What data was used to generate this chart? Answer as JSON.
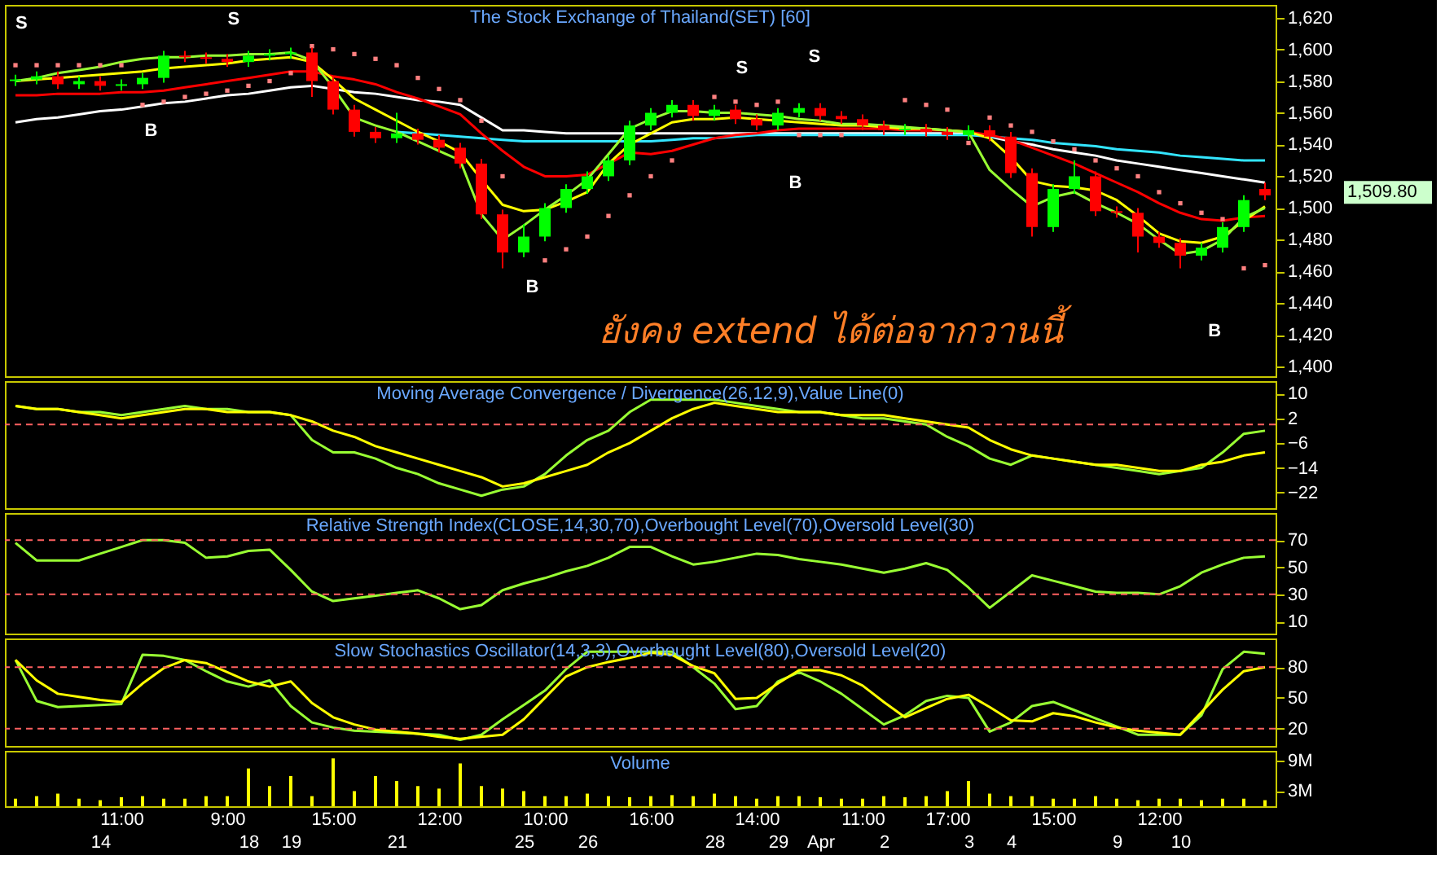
{
  "chart_data": [
    {
      "type": "candlestick",
      "title": "The Stock Exchange of Thailand(SET) [60]",
      "categories": [
        null,
        null,
        null,
        null,
        null,
        null,
        null,
        null,
        null,
        null,
        null,
        null,
        null,
        null,
        null,
        null,
        null,
        null,
        null,
        null,
        null,
        null,
        null,
        null,
        null,
        null,
        null,
        null,
        null,
        null,
        null,
        null,
        null,
        null,
        null,
        null,
        null,
        null,
        null,
        null,
        null,
        null,
        null,
        null,
        null,
        null,
        null,
        null,
        null,
        null,
        null,
        null,
        null,
        null,
        null,
        null,
        null,
        null,
        null,
        null
      ],
      "ohlc": [
        [
          1580,
          1584,
          1577,
          1581
        ],
        [
          1581,
          1586,
          1578,
          1583
        ],
        [
          1583,
          1586,
          1575,
          1578
        ],
        [
          1578,
          1583,
          1575,
          1580
        ],
        [
          1580,
          1583,
          1574,
          1577
        ],
        [
          1577,
          1581,
          1574,
          1578
        ],
        [
          1578,
          1585,
          1575,
          1582
        ],
        [
          1582,
          1599,
          1579,
          1596
        ],
        [
          1596,
          1599,
          1592,
          1595
        ],
        [
          1595,
          1598,
          1591,
          1594
        ],
        [
          1594,
          1597,
          1589,
          1592
        ],
        [
          1592,
          1599,
          1589,
          1596
        ],
        [
          1596,
          1600,
          1593,
          1597
        ],
        [
          1597,
          1601,
          1594,
          1598
        ],
        [
          1598,
          1601,
          1570,
          1580
        ],
        [
          1580,
          1583,
          1559,
          1562
        ],
        [
          1562,
          1565,
          1545,
          1548
        ],
        [
          1548,
          1551,
          1541,
          1544
        ],
        [
          1544,
          1560,
          1541,
          1547
        ],
        [
          1547,
          1550,
          1540,
          1543
        ],
        [
          1543,
          1546,
          1535,
          1538
        ],
        [
          1538,
          1541,
          1525,
          1528
        ],
        [
          1528,
          1531,
          1493,
          1496
        ],
        [
          1496,
          1499,
          1462,
          1472
        ],
        [
          1472,
          1490,
          1469,
          1482
        ],
        [
          1482,
          1503,
          1479,
          1500
        ],
        [
          1500,
          1515,
          1497,
          1512
        ],
        [
          1512,
          1523,
          1509,
          1520
        ],
        [
          1520,
          1533,
          1517,
          1530
        ],
        [
          1530,
          1555,
          1527,
          1552
        ],
        [
          1552,
          1563,
          1549,
          1560
        ],
        [
          1560,
          1568,
          1557,
          1565
        ],
        [
          1565,
          1568,
          1555,
          1558
        ],
        [
          1558,
          1565,
          1555,
          1562
        ],
        [
          1562,
          1565,
          1553,
          1556
        ],
        [
          1556,
          1559,
          1549,
          1552
        ],
        [
          1552,
          1563,
          1549,
          1560
        ],
        [
          1560,
          1566,
          1557,
          1563
        ],
        [
          1563,
          1566,
          1555,
          1558
        ],
        [
          1558,
          1561,
          1553,
          1556
        ],
        [
          1556,
          1559,
          1549,
          1552
        ],
        [
          1552,
          1555,
          1546,
          1549
        ],
        [
          1549,
          1553,
          1546,
          1550
        ],
        [
          1550,
          1553,
          1545,
          1548
        ],
        [
          1548,
          1551,
          1543,
          1546
        ],
        [
          1546,
          1552,
          1543,
          1549
        ],
        [
          1549,
          1552,
          1542,
          1545
        ],
        [
          1545,
          1548,
          1519,
          1522
        ],
        [
          1522,
          1525,
          1482,
          1488
        ],
        [
          1488,
          1515,
          1485,
          1512
        ],
        [
          1512,
          1530,
          1509,
          1520
        ],
        [
          1520,
          1523,
          1495,
          1498
        ],
        [
          1498,
          1501,
          1494,
          1497
        ],
        [
          1497,
          1500,
          1472,
          1482
        ],
        [
          1482,
          1485,
          1475,
          1478
        ],
        [
          1478,
          1481,
          1462,
          1470
        ],
        [
          1470,
          1478,
          1467,
          1475
        ],
        [
          1475,
          1491,
          1472,
          1488
        ],
        [
          1488,
          1508,
          1485,
          1505
        ],
        [
          1512,
          1516,
          1505,
          1508
        ]
      ],
      "colors": [
        "#00ff00",
        "#00ff00",
        "#ff0000",
        "#00ff00",
        "#ff0000",
        "#00ff00",
        "#00ff00",
        "#00ff00",
        "#ff0000",
        "#ff0000",
        "#ff0000",
        "#00ff00",
        "#00ff00",
        "#00ff00",
        "#ff0000",
        "#ff0000",
        "#ff0000",
        "#ff0000",
        "#00ff00",
        "#ff0000",
        "#ff0000",
        "#ff0000",
        "#ff0000",
        "#ff0000",
        "#00ff00",
        "#00ff00",
        "#00ff00",
        "#00ff00",
        "#00ff00",
        "#00ff00",
        "#00ff00",
        "#00ff00",
        "#ff0000",
        "#00ff00",
        "#ff0000",
        "#ff0000",
        "#00ff00",
        "#00ff00",
        "#ff0000",
        "#ff0000",
        "#ff0000",
        "#ff0000",
        "#00ff00",
        "#ff0000",
        "#ff0000",
        "#00ff00",
        "#ff0000",
        "#ff0000",
        "#ff0000",
        "#00ff00",
        "#00ff00",
        "#ff0000",
        "#ff0000",
        "#ff0000",
        "#ff0000",
        "#ff0000",
        "#00ff00",
        "#00ff00",
        "#00ff00",
        "#ff0000"
      ],
      "series": [
        {
          "type": "line",
          "color": "#ffffff",
          "values": [
            1554,
            1556,
            1557,
            1559,
            1561,
            1562,
            1564,
            1566,
            1567,
            1569,
            1571,
            1572,
            1574,
            1576,
            1577,
            1575,
            1573,
            1572,
            1570,
            1568,
            1567,
            1565,
            1557,
            1549,
            1549,
            1548,
            1547,
            1547,
            1547,
            1547,
            1547,
            1547,
            1547,
            1547,
            1547,
            1547,
            1547,
            1547,
            1547,
            1547,
            1547,
            1547,
            1547,
            1547,
            1547,
            1547,
            1545,
            1542,
            1540,
            1537,
            1535,
            1533,
            1530,
            1528,
            1526,
            1524,
            1522,
            1520,
            1518,
            1516
          ]
        },
        {
          "type": "line",
          "color": "#33e5ff",
          "values": [
            null,
            null,
            null,
            null,
            null,
            null,
            null,
            null,
            null,
            null,
            null,
            null,
            null,
            null,
            null,
            null,
            null,
            null,
            1548,
            1547,
            1546,
            1545,
            1544,
            1543,
            1542,
            1542,
            1542,
            1542,
            1542,
            1542,
            1542,
            1543,
            1544,
            1544,
            1545,
            1546,
            1546,
            1546,
            1546,
            1546,
            1546,
            1546,
            1546,
            1546,
            1546,
            1546,
            1545,
            1544,
            1543,
            1541,
            1540,
            1539,
            1537,
            1536,
            1535,
            1533,
            1532,
            1531,
            1530,
            1530
          ]
        },
        {
          "type": "line",
          "color": "#ff0000",
          "values": [
            1571,
            1571,
            1572,
            1572,
            1572,
            1573,
            1573,
            1574,
            1576,
            1578,
            1580,
            1582,
            1584,
            1586,
            1586,
            1583,
            1581,
            1578,
            1573,
            1569,
            1564,
            1559,
            1547,
            1536,
            1526,
            1520,
            1520,
            1521,
            1528,
            1535,
            1534,
            1536,
            1540,
            1544,
            1546,
            1547,
            1549,
            1550,
            1550,
            1550,
            1550,
            1550,
            1549,
            1549,
            1549,
            1548,
            1546,
            1543,
            1538,
            1533,
            1528,
            1522,
            1516,
            1510,
            1503,
            1497,
            1493,
            1492,
            1494,
            1495
          ]
        },
        {
          "type": "line",
          "color": "#ffff00",
          "values": [
            1580,
            1581,
            1582,
            1583,
            1584,
            1585,
            1586,
            1588,
            1589,
            1590,
            1591,
            1593,
            1594,
            1595,
            1592,
            1581,
            1569,
            1562,
            1555,
            1548,
            1542,
            1535,
            1518,
            1502,
            1498,
            1499,
            1504,
            1510,
            1528,
            1540,
            1547,
            1554,
            1556,
            1556,
            1557,
            1556,
            1555,
            1554,
            1553,
            1552,
            1552,
            1551,
            1550,
            1550,
            1549,
            1548,
            1544,
            1532,
            1517,
            1514,
            1513,
            1511,
            1505,
            1495,
            1484,
            1479,
            1478,
            1482,
            1492,
            1501
          ]
        },
        {
          "type": "line",
          "color": "#99ff33",
          "values": [
            1580,
            1582,
            1585,
            1587,
            1589,
            1592,
            1594,
            1595,
            1595,
            1596,
            1596,
            1597,
            1597,
            1598,
            1593,
            1576,
            1557,
            1552,
            1548,
            1542,
            1536,
            1530,
            1496,
            1480,
            1489,
            1499,
            1508,
            1518,
            1534,
            1550,
            1556,
            1561,
            1561,
            1560,
            1560,
            1559,
            1558,
            1556,
            1555,
            1553,
            1553,
            1552,
            1551,
            1550,
            1549,
            1548,
            1524,
            1512,
            1501,
            1507,
            1510,
            1503,
            1497,
            1490,
            1480,
            1471,
            1473,
            1480,
            1494,
            1500
          ]
        },
        {
          "type": "scatter",
          "marker": "square",
          "color": "#ff8080",
          "values": [
            1590,
            1590,
            1590,
            1590,
            1590,
            1590,
            1565,
            1567,
            1570,
            1572,
            1574,
            1577,
            1580,
            1585,
            1602,
            1600,
            1597,
            1594,
            1590,
            1582,
            1575,
            1568,
            1555,
            1520,
            null,
            1467,
            1474,
            1482,
            1495,
            1508,
            1520,
            1530,
            null,
            1570,
            1567,
            1565,
            1567,
            1546,
            1546,
            1546,
            null,
            null,
            1568,
            1565,
            1562,
            1541,
            1557,
            1552,
            1548,
            1542,
            1537,
            1530,
            1525,
            1520,
            1510,
            1503,
            1497,
            1493,
            1462,
            1464
          ]
        }
      ],
      "ylim": [
        1394,
        1628
      ],
      "yticks": [
        {
          "value": 1400,
          "label": "1,400"
        },
        {
          "value": 1420,
          "label": "1,420"
        },
        {
          "value": 1440,
          "label": "1,440"
        },
        {
          "value": 1460,
          "label": "1,460"
        },
        {
          "value": 1480,
          "label": "1,480"
        },
        {
          "value": 1500,
          "label": "1,500"
        },
        {
          "value": 1520,
          "label": "1,520"
        },
        {
          "value": 1540,
          "label": "1,540"
        },
        {
          "value": 1560,
          "label": "1,560"
        },
        {
          "value": 1580,
          "label": "1,580"
        },
        {
          "value": 1600,
          "label": "1,600"
        },
        {
          "value": 1620,
          "label": "1,620"
        }
      ],
      "annotations": [
        "S",
        "S",
        "S",
        "S",
        "B",
        "B",
        "B",
        "B",
        "ยังคง extend ได้ต่อจากวานนี้",
        "1,509.80"
      ]
    },
    {
      "type": "line",
      "title": "Moving Average Convergence / Divergence(26,12,9),Value Line(0)",
      "categories": [
        null,
        null,
        null,
        null,
        null,
        null,
        null,
        null,
        null,
        null,
        null,
        null,
        null,
        null,
        null,
        null,
        null,
        null,
        null,
        null,
        null,
        null,
        null,
        null,
        null,
        null,
        null,
        null,
        null,
        null,
        null,
        null,
        null,
        null,
        null,
        null,
        null,
        null,
        null,
        null,
        null,
        null,
        null,
        null,
        null,
        null,
        null,
        null,
        null,
        null,
        null,
        null,
        null,
        null,
        null,
        null,
        null,
        null,
        null,
        null
      ],
      "series": [
        {
          "color": "#99ff33",
          "values": [
            6,
            5,
            5,
            4,
            4,
            3,
            4,
            5,
            6,
            5,
            5,
            4,
            4,
            3,
            -5,
            -9,
            -9,
            -11,
            -14,
            -16,
            -19,
            -21,
            -23,
            -21,
            -20,
            -16,
            -10,
            -5,
            -2,
            4,
            8,
            8,
            8,
            8,
            7,
            6,
            5,
            4,
            4,
            3,
            2,
            2,
            1,
            0,
            -4,
            -7,
            -11,
            -13,
            -10,
            -11,
            -12,
            -13,
            -14,
            -15,
            -16,
            -15,
            -14,
            -9,
            -3,
            -2
          ]
        },
        {
          "color": "#ffff00",
          "values": [
            6,
            5,
            5,
            4,
            3,
            2,
            3,
            4,
            5,
            5,
            4,
            4,
            4,
            3,
            1,
            -2,
            -4,
            -7,
            -9,
            -11,
            -13,
            -15,
            -17,
            -20,
            -19,
            -17,
            -15,
            -13,
            -9,
            -6,
            -2,
            2,
            5,
            7,
            6,
            5,
            4,
            4,
            4,
            3,
            3,
            3,
            2,
            1,
            0,
            -1,
            -5,
            -8,
            -10,
            -11,
            -12,
            -13,
            -13,
            -14,
            -15,
            -15,
            -13,
            -12,
            -10,
            -9
          ]
        }
      ],
      "ylim": [
        -27,
        14
      ],
      "yticks": [
        10,
        2,
        -6,
        -14,
        -22
      ],
      "ref_lines": [
        {
          "axis": "y",
          "value": 0,
          "color": "#ff6060",
          "line_style": "dashed"
        }
      ]
    },
    {
      "type": "line",
      "title": "Relative Strength Index(CLOSE,14,30,70),Overbought Level(70),Oversold Level(30)",
      "categories": [
        null,
        null,
        null,
        null,
        null,
        null,
        null,
        null,
        null,
        null,
        null,
        null,
        null,
        null,
        null,
        null,
        null,
        null,
        null,
        null,
        null,
        null,
        null,
        null,
        null,
        null,
        null,
        null,
        null,
        null,
        null,
        null,
        null,
        null,
        null,
        null,
        null,
        null,
        null,
        null,
        null,
        null,
        null,
        null,
        null,
        null,
        null,
        null,
        null,
        null,
        null,
        null,
        null,
        null,
        null,
        null,
        null,
        null,
        null,
        null
      ],
      "series": [
        {
          "color": "#99ff33",
          "values": [
            68,
            55,
            55,
            55,
            60,
            65,
            70,
            70,
            68,
            57,
            58,
            62,
            63,
            48,
            32,
            25,
            27,
            29,
            31,
            33,
            27,
            19,
            22,
            33,
            38,
            42,
            47,
            51,
            57,
            65,
            65,
            58,
            52,
            54,
            57,
            60,
            59,
            56,
            54,
            52,
            49,
            46,
            49,
            53,
            48,
            35,
            20,
            32,
            44,
            40,
            36,
            32,
            31,
            31,
            30,
            36,
            46,
            52,
            57,
            58
          ]
        }
      ],
      "ylim": [
        1,
        90
      ],
      "yticks": [
        10,
        30,
        50,
        70
      ],
      "ref_lines": [
        {
          "axis": "y",
          "value": 70,
          "color": "#ff6060",
          "line_style": "dashed"
        },
        {
          "axis": "y",
          "value": 30,
          "color": "#ff6060",
          "line_style": "dashed"
        }
      ]
    },
    {
      "type": "line",
      "title": "Slow Stochastics Oscillator(14,3,3),Overbought Level(80),Oversold Level(20)",
      "categories": [
        null,
        null,
        null,
        null,
        null,
        null,
        null,
        null,
        null,
        null,
        null,
        null,
        null,
        null,
        null,
        null,
        null,
        null,
        null,
        null,
        null,
        null,
        null,
        null,
        null,
        null,
        null,
        null,
        null,
        null,
        null,
        null,
        null,
        null,
        null,
        null,
        null,
        null,
        null,
        null,
        null,
        null,
        null,
        null,
        null,
        null,
        null,
        null,
        null,
        null,
        null,
        null,
        null,
        null,
        null,
        null,
        null,
        null,
        null,
        null
      ],
      "series": [
        {
          "color": "#99ff33",
          "values": [
            87,
            47,
            41,
            42,
            43,
            44,
            92,
            91,
            87,
            76,
            66,
            61,
            67,
            42,
            26,
            21,
            18,
            17,
            16,
            15,
            14,
            9,
            14,
            29,
            43,
            57,
            78,
            95,
            95,
            95,
            95,
            95,
            80,
            64,
            39,
            42,
            66,
            75,
            66,
            54,
            39,
            24,
            33,
            47,
            52,
            50,
            17,
            26,
            42,
            46,
            38,
            30,
            22,
            14,
            14,
            14,
            33,
            78,
            95,
            93
          ]
        },
        {
          "color": "#ffff00",
          "values": [
            87,
            67,
            54,
            51,
            48,
            46,
            64,
            79,
            87,
            84,
            75,
            66,
            61,
            66,
            45,
            31,
            24,
            19,
            17,
            15,
            12,
            10,
            12,
            14,
            29,
            50,
            71,
            80,
            85,
            89,
            94,
            92,
            81,
            74,
            49,
            50,
            64,
            77,
            77,
            72,
            62,
            46,
            31,
            40,
            49,
            53,
            41,
            28,
            27,
            35,
            32,
            26,
            21,
            18,
            16,
            14,
            36,
            58,
            76,
            80
          ]
        }
      ],
      "ylim": [
        3,
        108
      ],
      "yticks": [
        20,
        50,
        80
      ],
      "ref_lines": [
        {
          "axis": "y",
          "value": 80,
          "color": "#ff6060",
          "line_style": "dashed"
        },
        {
          "axis": "y",
          "value": 20,
          "color": "#ff6060",
          "line_style": "dashed"
        }
      ]
    },
    {
      "type": "bar",
      "title": "Volume",
      "color": "#ffff00",
      "categories": [
        null,
        null,
        null,
        null,
        "14",
        "11:00",
        null,
        null,
        null,
        null,
        "9:00",
        "18",
        null,
        "19",
        null,
        "15:00",
        null,
        null,
        "21",
        null,
        "12:00",
        null,
        null,
        null,
        "25",
        "10:00",
        null,
        "26",
        null,
        null,
        "16:00",
        null,
        null,
        "28",
        null,
        "14:00",
        "29",
        null,
        "Apr",
        null,
        "11:00",
        "2",
        null,
        null,
        "17:00",
        "3",
        null,
        "4",
        null,
        "15:00",
        null,
        null,
        "9",
        null,
        "12:00",
        "10",
        null,
        null,
        null,
        null
      ],
      "values": [
        1.5,
        2,
        2.5,
        1.5,
        1.2,
        1.8,
        2,
        1.5,
        1.5,
        2,
        2,
        7.5,
        4,
        6,
        2,
        9.5,
        3,
        6,
        5,
        4,
        3.5,
        8.5,
        4,
        3.5,
        3,
        2,
        2,
        2.5,
        2,
        1.8,
        2,
        2.2,
        2,
        2.5,
        2,
        1.5,
        2,
        2,
        1.8,
        1.5,
        1.5,
        2,
        1.8,
        2,
        3,
        5,
        2.5,
        2,
        2,
        1.5,
        1.5,
        2,
        1.5,
        1.2,
        1.5,
        1.5,
        1.2,
        1.5,
        1.5,
        1.2
      ],
      "ylim": [
        0,
        11
      ],
      "yticks": [
        {
          "value": 3,
          "label": "3M"
        },
        {
          "value": 9,
          "label": "9M"
        }
      ]
    }
  ]
}
